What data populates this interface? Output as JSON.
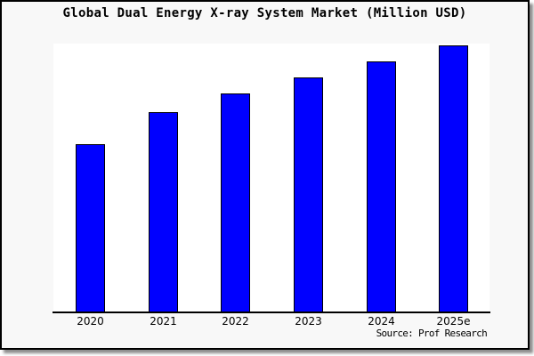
{
  "chart_data": {
    "type": "bar",
    "title": "Global Dual Energy X-ray System Market (Million USD)",
    "categories": [
      "2020",
      "2021",
      "2022",
      "2023",
      "2024",
      "2025e"
    ],
    "values": [
      63,
      75,
      82,
      88,
      94,
      100
    ],
    "values_note": "no y-axis or value labels shown; values estimated from bar heights relative to 2025e = 100",
    "xlabel": "",
    "ylabel": "",
    "ylim": [
      0,
      100.7
    ],
    "grid": false,
    "legend": false,
    "y_axis_visible": false,
    "bar_color": "#0000ff",
    "bar_border_color": "#000000",
    "plot_background": "#ffffff",
    "frame_background": "#f8f8f8",
    "source": "Source: Prof Research"
  }
}
